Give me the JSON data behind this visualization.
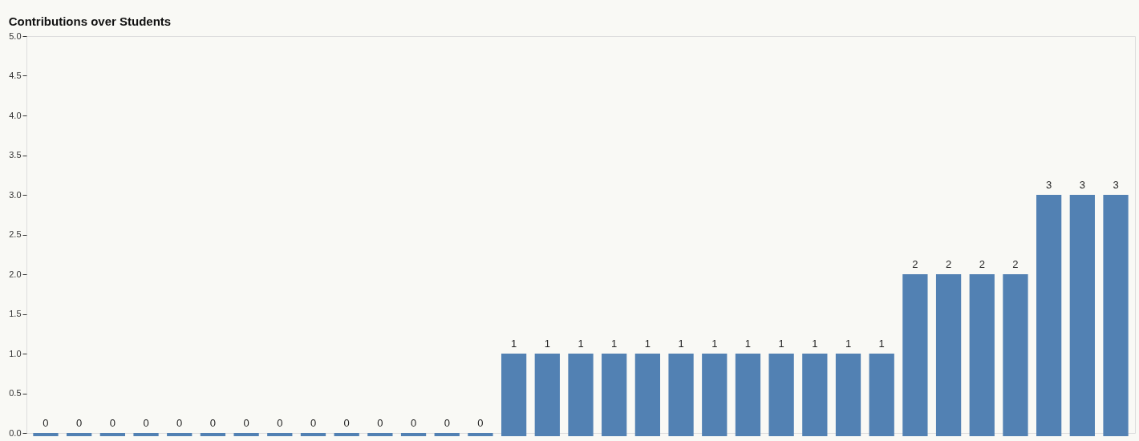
{
  "chart_data": {
    "type": "bar",
    "title": "Contributions over Students",
    "categories": [
      null,
      null,
      null,
      null,
      null,
      null,
      null,
      null,
      null,
      null,
      null,
      null,
      null,
      null,
      null,
      null,
      null,
      null,
      null,
      null,
      null,
      null,
      null,
      null,
      null,
      null,
      null,
      null,
      null,
      null,
      null,
      null,
      null
    ],
    "values": [
      0,
      0,
      0,
      0,
      0,
      0,
      0,
      0,
      0,
      0,
      0,
      0,
      0,
      0,
      1,
      1,
      1,
      1,
      1,
      1,
      1,
      1,
      1,
      1,
      1,
      1,
      2,
      2,
      2,
      2,
      3,
      3,
      3
    ],
    "color": "#5281b3",
    "ylim": [
      0,
      5
    ],
    "yticks": [
      {
        "value": 0,
        "label": "0.0"
      },
      {
        "value": 0.5,
        "label": "0.5"
      },
      {
        "value": 1,
        "label": "1.0"
      },
      {
        "value": 1.5,
        "label": "1.5"
      },
      {
        "value": 2,
        "label": "2.0"
      },
      {
        "value": 2.5,
        "label": "2.5"
      },
      {
        "value": 3,
        "label": "3.0"
      },
      {
        "value": 3.5,
        "label": "3.5"
      },
      {
        "value": 4,
        "label": "4.0"
      },
      {
        "value": 4.5,
        "label": "4.5"
      },
      {
        "value": 5,
        "label": "5.0"
      }
    ],
    "data_labels": true,
    "grid": false,
    "tick_labels": "y"
  }
}
